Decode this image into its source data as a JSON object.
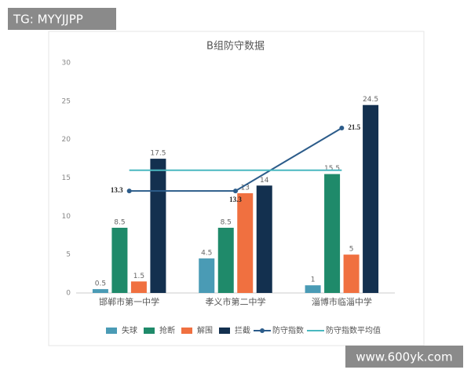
{
  "chart_data": {
    "type": "bar",
    "title": "B组防守数据",
    "categories": [
      "邯郸市第一中学",
      "孝义市第二中学",
      "淄博市临淄中学"
    ],
    "series": [
      {
        "name": "失球",
        "type": "bar",
        "color": "#4a9bb5",
        "values": [
          0.5,
          4.5,
          1
        ]
      },
      {
        "name": "抢断",
        "type": "bar",
        "color": "#1f8a6a",
        "values": [
          8.5,
          8.5,
          15.5
        ]
      },
      {
        "name": "解围",
        "type": "bar",
        "color": "#f07040",
        "values": [
          1.5,
          13,
          5
        ]
      },
      {
        "name": "拦截",
        "type": "bar",
        "color": "#13304f",
        "values": [
          17.5,
          14,
          24.5
        ]
      },
      {
        "name": "防守指数",
        "type": "line",
        "color": "#2c5c8a",
        "values": [
          13.3,
          13.3,
          21.5
        ]
      },
      {
        "name": "防守指数平均值",
        "type": "flat",
        "color": "#4ab8c0",
        "values": [
          16,
          16,
          16
        ]
      }
    ],
    "ylim": [
      0,
      30
    ],
    "yticks": [
      0,
      5,
      10,
      15,
      20,
      25,
      30
    ],
    "grid": false
  },
  "watermarks": [
    "TG: MYYJJPP",
    "www.600yk.com"
  ]
}
